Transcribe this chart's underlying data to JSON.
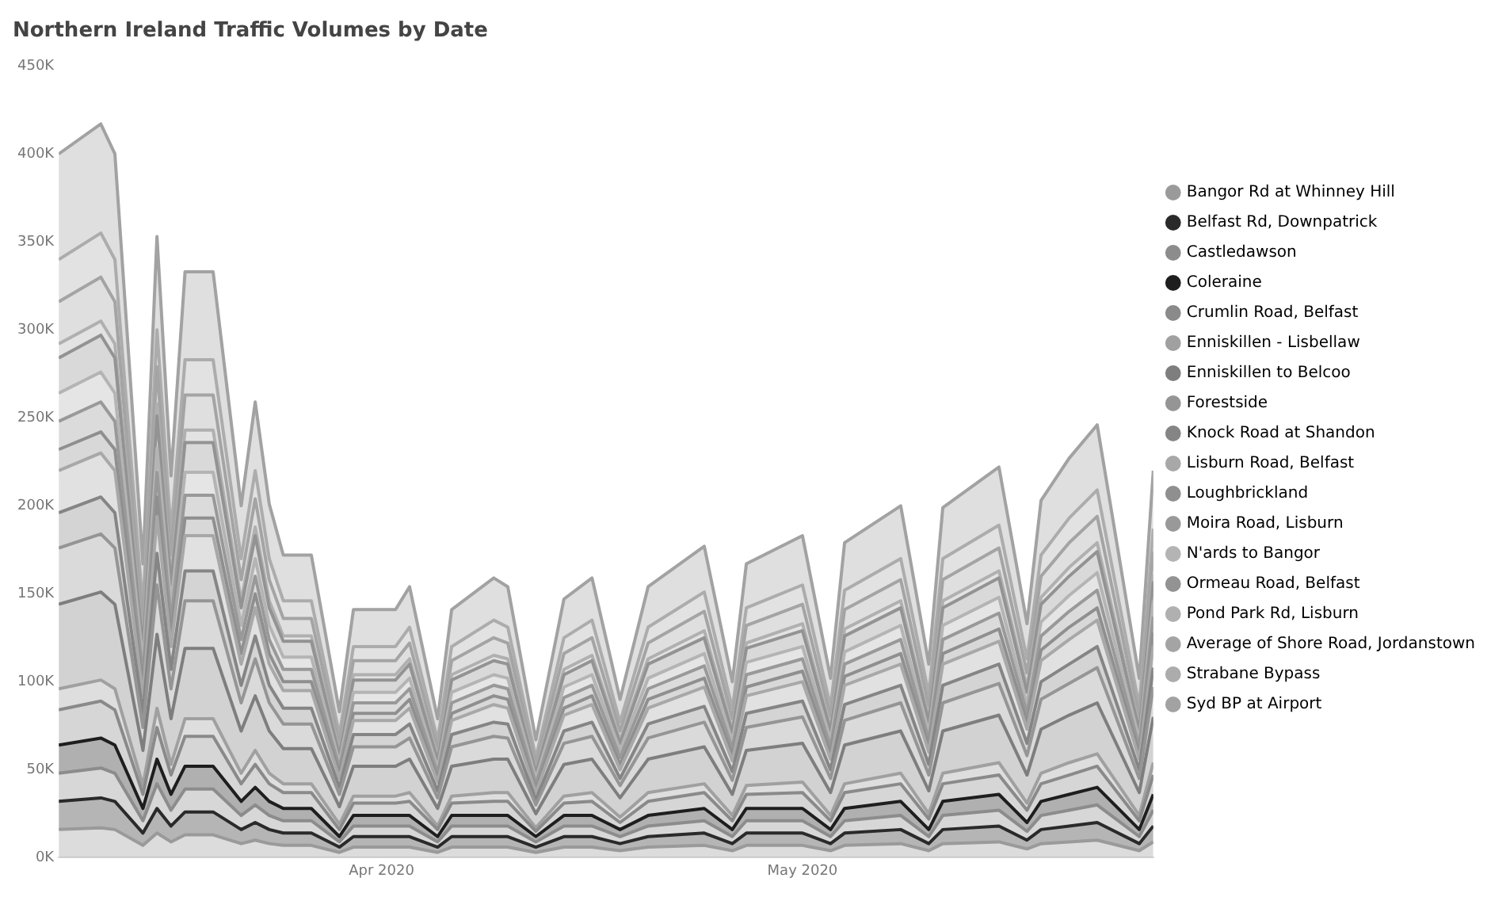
{
  "chart_data": {
    "type": "area",
    "title": "Northern Ireland Traffic Volumes by Date",
    "stacked": true,
    "legend": "right",
    "marker": "none",
    "grid": false,
    "x": [
      "2020-03-09",
      "2020-03-12",
      "2020-03-13",
      "2020-03-15",
      "2020-03-16",
      "2020-03-17",
      "2020-03-18",
      "2020-03-20",
      "2020-03-22",
      "2020-03-23",
      "2020-03-24",
      "2020-03-25",
      "2020-03-27",
      "2020-03-29",
      "2020-03-30",
      "2020-04-02",
      "2020-04-03",
      "2020-04-05",
      "2020-04-06",
      "2020-04-09",
      "2020-04-10",
      "2020-04-12",
      "2020-04-14",
      "2020-04-16",
      "2020-04-18",
      "2020-04-20",
      "2020-04-24",
      "2020-04-26",
      "2020-04-27",
      "2020-05-01",
      "2020-05-03",
      "2020-05-04",
      "2020-05-08",
      "2020-05-10",
      "2020-05-11",
      "2020-05-15",
      "2020-05-17",
      "2020-05-18",
      "2020-05-20",
      "2020-05-22",
      "2020-05-25",
      "2020-05-26"
    ],
    "xlim": [
      "2020-03-09",
      "2020-05-26"
    ],
    "xticks": [
      {
        "value": "2020-04-01",
        "label": "Apr 2020"
      },
      {
        "value": "2020-05-01",
        "label": "May 2020"
      }
    ],
    "ylim": [
      0,
      450
    ],
    "yticks": [
      {
        "value": 0,
        "label": "0K"
      },
      {
        "value": 50,
        "label": "50K"
      },
      {
        "value": 100,
        "label": "100K"
      },
      {
        "value": 150,
        "label": "150K"
      },
      {
        "value": 200,
        "label": "200K"
      },
      {
        "value": 250,
        "label": "250K"
      },
      {
        "value": 300,
        "label": "300K"
      },
      {
        "value": 350,
        "label": "350K"
      },
      {
        "value": 400,
        "label": "400K"
      },
      {
        "value": 450,
        "label": "450K"
      }
    ],
    "series": [
      {
        "name": "Bangor Rd at Whinney Hill",
        "color": "#9a9a9a",
        "values": [
          16,
          17,
          16,
          7,
          14,
          9,
          13,
          13,
          8,
          10,
          8,
          7,
          7,
          3,
          6,
          6,
          6,
          3,
          6,
          6,
          6,
          3,
          6,
          6,
          4,
          6,
          7,
          4,
          7,
          7,
          4,
          7,
          8,
          4,
          8,
          9,
          5,
          8,
          9,
          10,
          4,
          9
        ]
      },
      {
        "name": "Belfast Rd, Downpatrick",
        "color": "#2a2a2a",
        "values": [
          16,
          17,
          16,
          7,
          14,
          9,
          13,
          13,
          8,
          10,
          8,
          7,
          7,
          3,
          6,
          6,
          6,
          3,
          6,
          6,
          6,
          3,
          6,
          6,
          4,
          6,
          7,
          4,
          7,
          7,
          4,
          7,
          8,
          4,
          8,
          9,
          5,
          8,
          9,
          10,
          4,
          9
        ]
      },
      {
        "name": "Castledawson",
        "color": "#8c8c8c",
        "values": [
          16,
          17,
          16,
          7,
          14,
          9,
          13,
          13,
          8,
          10,
          8,
          7,
          7,
          3,
          6,
          6,
          6,
          3,
          6,
          6,
          6,
          3,
          6,
          6,
          4,
          6,
          7,
          4,
          7,
          7,
          4,
          7,
          8,
          4,
          8,
          9,
          5,
          8,
          9,
          10,
          4,
          9
        ]
      },
      {
        "name": "Coleraine",
        "color": "#1e1e1e",
        "values": [
          16,
          17,
          16,
          7,
          14,
          9,
          13,
          13,
          8,
          10,
          8,
          7,
          7,
          3,
          6,
          6,
          6,
          3,
          6,
          6,
          6,
          3,
          6,
          6,
          4,
          6,
          7,
          4,
          7,
          7,
          4,
          7,
          8,
          4,
          8,
          9,
          5,
          8,
          9,
          10,
          4,
          9
        ]
      },
      {
        "name": "Crumlin Road, Belfast",
        "color": "#8a8a8a",
        "values": [
          20,
          21,
          20,
          8,
          18,
          11,
          17,
          17,
          10,
          13,
          10,
          9,
          9,
          4,
          7,
          7,
          8,
          4,
          7,
          8,
          8,
          3,
          7,
          8,
          4,
          8,
          9,
          5,
          8,
          9,
          5,
          9,
          10,
          6,
          10,
          11,
          7,
          10,
          11,
          12,
          5,
          11
        ]
      },
      {
        "name": "Enniskillen - Lisbellaw",
        "color": "#a0a0a0",
        "values": [
          12,
          12,
          12,
          5,
          11,
          6,
          10,
          10,
          6,
          8,
          6,
          5,
          5,
          3,
          4,
          4,
          5,
          2,
          4,
          5,
          5,
          2,
          4,
          5,
          3,
          5,
          5,
          3,
          5,
          6,
          3,
          5,
          6,
          3,
          6,
          7,
          4,
          6,
          7,
          7,
          3,
          7
        ]
      },
      {
        "name": "Enniskillen to Belcoo",
        "color": "#7e7e7e",
        "values": [
          48,
          50,
          48,
          20,
          42,
          26,
          40,
          40,
          24,
          31,
          24,
          20,
          20,
          10,
          17,
          17,
          19,
          10,
          17,
          19,
          19,
          8,
          18,
          19,
          11,
          19,
          21,
          12,
          20,
          22,
          13,
          22,
          24,
          13,
          24,
          27,
          16,
          25,
          27,
          29,
          13,
          26
        ]
      },
      {
        "name": "Forestside",
        "color": "#959595",
        "values": [
          32,
          33,
          32,
          13,
          28,
          17,
          27,
          27,
          16,
          21,
          16,
          14,
          14,
          7,
          11,
          11,
          12,
          6,
          11,
          13,
          12,
          5,
          12,
          13,
          7,
          12,
          14,
          8,
          13,
          15,
          8,
          14,
          16,
          9,
          16,
          18,
          11,
          17,
          18,
          20,
          8,
          17
        ]
      },
      {
        "name": "Knock Road at Shandon",
        "color": "#858585",
        "values": [
          20,
          21,
          20,
          8,
          18,
          11,
          17,
          17,
          10,
          13,
          10,
          9,
          9,
          4,
          7,
          7,
          8,
          4,
          7,
          8,
          8,
          3,
          7,
          8,
          4,
          8,
          9,
          5,
          8,
          9,
          5,
          9,
          10,
          6,
          10,
          11,
          7,
          10,
          11,
          12,
          5,
          11
        ]
      },
      {
        "name": "Lisburn Road, Belfast",
        "color": "#a8a8a8",
        "values": [
          24,
          25,
          24,
          10,
          21,
          13,
          20,
          20,
          12,
          16,
          12,
          10,
          10,
          5,
          8,
          8,
          9,
          5,
          8,
          10,
          9,
          4,
          9,
          10,
          5,
          9,
          11,
          6,
          10,
          11,
          6,
          11,
          12,
          7,
          12,
          13,
          8,
          12,
          14,
          15,
          6,
          13
        ]
      },
      {
        "name": "Loughbrickland",
        "color": "#8f8f8f",
        "values": [
          12,
          12,
          12,
          5,
          11,
          6,
          10,
          10,
          6,
          8,
          6,
          5,
          5,
          3,
          4,
          4,
          5,
          2,
          4,
          5,
          5,
          2,
          4,
          5,
          3,
          5,
          5,
          3,
          5,
          6,
          3,
          5,
          6,
          3,
          6,
          7,
          4,
          6,
          7,
          7,
          3,
          7
        ]
      },
      {
        "name": "Moira Road, Lisburn",
        "color": "#999999",
        "values": [
          16,
          17,
          16,
          7,
          14,
          9,
          13,
          13,
          8,
          10,
          8,
          7,
          7,
          3,
          6,
          6,
          6,
          3,
          6,
          6,
          6,
          3,
          6,
          6,
          4,
          6,
          7,
          4,
          7,
          7,
          4,
          7,
          8,
          4,
          8,
          9,
          5,
          8,
          9,
          10,
          4,
          9
        ]
      },
      {
        "name": "N'ards to Bangor",
        "color": "#b4b4b4",
        "values": [
          16,
          17,
          16,
          7,
          14,
          9,
          13,
          13,
          8,
          10,
          8,
          7,
          7,
          3,
          6,
          6,
          6,
          3,
          6,
          6,
          6,
          3,
          6,
          6,
          4,
          6,
          7,
          4,
          7,
          7,
          4,
          7,
          8,
          4,
          8,
          9,
          5,
          8,
          9,
          10,
          4,
          9
        ]
      },
      {
        "name": "Ormeau Road, Belfast",
        "color": "#939393",
        "values": [
          20,
          21,
          20,
          8,
          18,
          11,
          17,
          17,
          10,
          13,
          10,
          9,
          9,
          4,
          7,
          7,
          8,
          4,
          7,
          8,
          8,
          3,
          7,
          8,
          4,
          8,
          9,
          5,
          8,
          9,
          5,
          9,
          10,
          6,
          10,
          11,
          7,
          10,
          11,
          12,
          5,
          11
        ]
      },
      {
        "name": "Pond Park Rd, Lisburn",
        "color": "#b0b0b0",
        "values": [
          8,
          8,
          8,
          3,
          7,
          4,
          7,
          7,
          4,
          5,
          4,
          3,
          3,
          2,
          3,
          3,
          3,
          2,
          3,
          3,
          3,
          1,
          3,
          3,
          2,
          3,
          4,
          2,
          3,
          4,
          2,
          4,
          4,
          2,
          4,
          4,
          3,
          4,
          5,
          5,
          2,
          4
        ]
      },
      {
        "name": "Average of Shore Road, Jordanstown",
        "color": "#a4a4a4",
        "values": [
          24,
          25,
          24,
          10,
          21,
          13,
          20,
          20,
          12,
          16,
          12,
          10,
          10,
          5,
          8,
          8,
          9,
          5,
          8,
          10,
          9,
          4,
          9,
          10,
          5,
          9,
          11,
          6,
          10,
          11,
          6,
          11,
          12,
          7,
          12,
          13,
          8,
          12,
          14,
          15,
          6,
          13
        ]
      },
      {
        "name": "Strabane Bypass",
        "color": "#acacac",
        "values": [
          24,
          25,
          24,
          10,
          21,
          13,
          20,
          20,
          12,
          16,
          12,
          10,
          10,
          5,
          8,
          8,
          9,
          5,
          8,
          10,
          9,
          4,
          9,
          10,
          5,
          9,
          11,
          6,
          10,
          11,
          6,
          11,
          12,
          7,
          12,
          13,
          8,
          12,
          14,
          15,
          6,
          13
        ]
      },
      {
        "name": "Syd BP at Airport",
        "color": "#a2a2a2",
        "values": [
          60,
          62,
          60,
          25,
          53,
          32,
          50,
          50,
          30,
          39,
          31,
          26,
          26,
          13,
          21,
          21,
          23,
          12,
          21,
          24,
          23,
          10,
          22,
          24,
          13,
          23,
          26,
          15,
          25,
          28,
          16,
          27,
          30,
          17,
          29,
          33,
          20,
          31,
          34,
          37,
          16,
          33
        ]
      }
    ]
  }
}
